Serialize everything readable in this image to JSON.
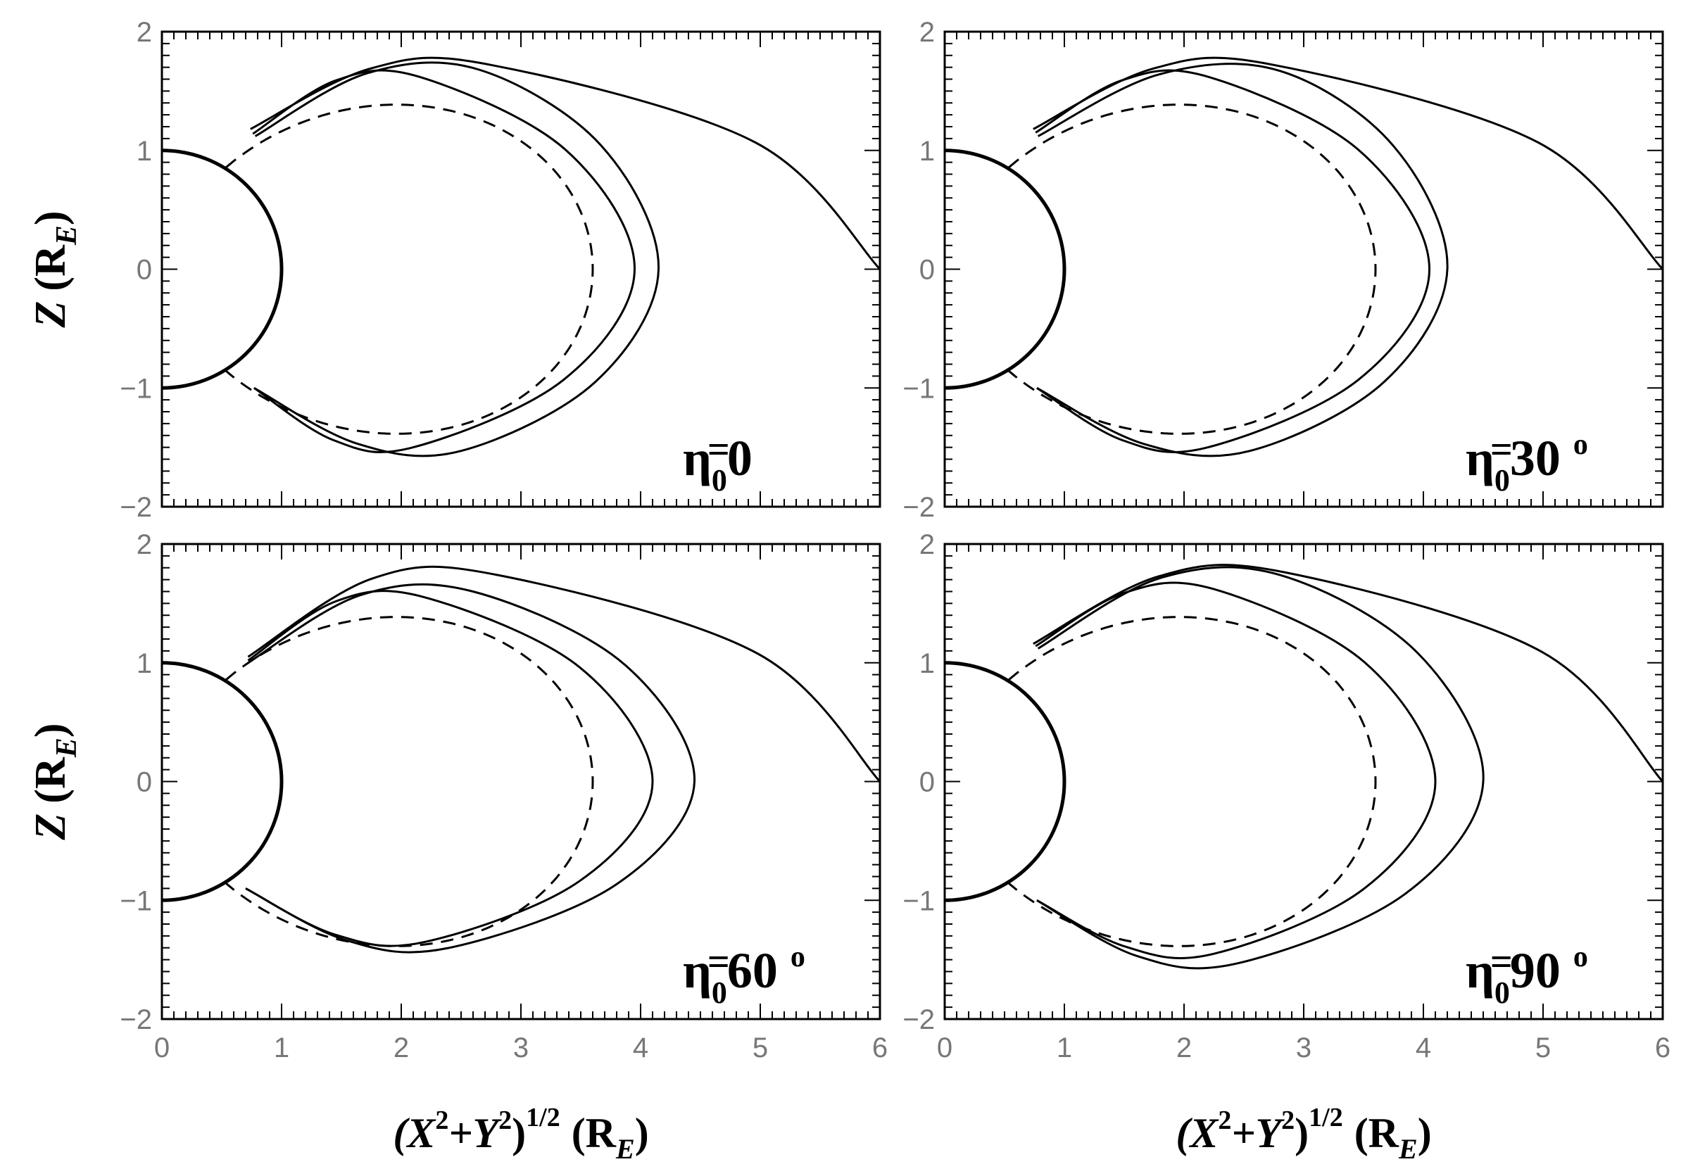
{
  "chart_data": [
    {
      "type": "line",
      "panel_label": {
        "main": "η",
        "sub": "0",
        "eq": "=",
        "value": "0",
        "deg": ""
      },
      "xlabel": {
        "base1": "(X",
        "sup1": "2",
        "plus": "+Y",
        "sup2": "2",
        "close": ")",
        "sup3": "1/2",
        "unit": "(R",
        "unit_sub": "E",
        "unit_close": ")"
      },
      "ylabel": {
        "var": "Z",
        "unit": "(R",
        "unit_sub": "E",
        "unit_close": ")"
      },
      "xlim": [
        0,
        6
      ],
      "ylim": [
        -2,
        2
      ],
      "xticks": [
        "0",
        "1",
        "2",
        "3",
        "4",
        "5",
        "6"
      ],
      "yticks": [
        "−2",
        "−1",
        "0",
        "1",
        "2"
      ],
      "earth_radius": 1,
      "dipole": {
        "style": "dashed",
        "L": 3.6,
        "lat_min_deg": 58
      },
      "field_lines": [
        {
          "style": "solid",
          "start": [
            0.78,
            1.12
          ],
          "top": [
            2.65,
            1.68
          ],
          "equator": 4.15,
          "bottom": [
            2.5,
            -1.53
          ],
          "end": [
            0.77,
            -1.0
          ]
        },
        {
          "style": "solid",
          "start": [
            0.76,
            1.14
          ],
          "top": [
            2.15,
            1.62
          ],
          "equator": 3.95,
          "bottom": [
            2.1,
            -1.5
          ],
          "end": [
            0.77,
            -1.0
          ]
        },
        {
          "style": "solid",
          "start": [
            0.74,
            1.18
          ],
          "top": [
            2.75,
            1.72
          ],
          "equator": 6.0,
          "bottom": null,
          "end": null
        }
      ]
    },
    {
      "type": "line",
      "panel_label": {
        "main": "η",
        "sub": "0",
        "eq": "=",
        "value": "30",
        "deg": "o"
      },
      "xlabel": {
        "base1": "(X",
        "sup1": "2",
        "plus": "+Y",
        "sup2": "2",
        "close": ")",
        "sup3": "1/2",
        "unit": "(R",
        "unit_sub": "E",
        "unit_close": ")"
      },
      "ylabel": {
        "var": "Z",
        "unit": "(R",
        "unit_sub": "E",
        "unit_close": ")"
      },
      "xlim": [
        0,
        6
      ],
      "ylim": [
        -2,
        2
      ],
      "xticks": [
        "0",
        "1",
        "2",
        "3",
        "4",
        "5",
        "6"
      ],
      "yticks": [
        "−2",
        "−1",
        "0",
        "1",
        "2"
      ],
      "earth_radius": 1,
      "dipole": {
        "style": "dashed",
        "L": 3.6,
        "lat_min_deg": 58
      },
      "field_lines": [
        {
          "style": "solid",
          "start": [
            0.78,
            1.12
          ],
          "top": [
            2.8,
            1.67
          ],
          "equator": 4.2,
          "bottom": [
            2.55,
            -1.53
          ],
          "end": [
            0.77,
            -1.0
          ]
        },
        {
          "style": "solid",
          "start": [
            0.76,
            1.15
          ],
          "top": [
            2.2,
            1.62
          ],
          "equator": 4.05,
          "bottom": [
            2.2,
            -1.5
          ],
          "end": [
            0.77,
            -1.0
          ]
        },
        {
          "style": "solid",
          "start": [
            0.74,
            1.18
          ],
          "top": [
            2.75,
            1.72
          ],
          "equator": 6.0,
          "bottom": null,
          "end": null
        }
      ]
    },
    {
      "type": "line",
      "panel_label": {
        "main": "η",
        "sub": "0",
        "eq": "=",
        "value": "60",
        "deg": "o"
      },
      "xlabel": {
        "base1": "(X",
        "sup1": "2",
        "plus": "+Y",
        "sup2": "2",
        "close": ")",
        "sup3": "1/2",
        "unit": "(R",
        "unit_sub": "E",
        "unit_close": ")"
      },
      "ylabel": {
        "var": "Z",
        "unit": "(R",
        "unit_sub": "E",
        "unit_close": ")"
      },
      "xlim": [
        0,
        6
      ],
      "ylim": [
        -2,
        2
      ],
      "xticks": [
        "0",
        "1",
        "2",
        "3",
        "4",
        "5",
        "6"
      ],
      "yticks": [
        "−2",
        "−1",
        "0",
        "1",
        "2"
      ],
      "earth_radius": 1,
      "dipole": {
        "style": "dashed",
        "L": 3.6,
        "lat_min_deg": 58
      },
      "field_lines": [
        {
          "style": "solid",
          "start": [
            0.72,
            1.0
          ],
          "top": [
            2.6,
            1.6
          ],
          "equator": 4.45,
          "bottom": [
            2.4,
            -1.4
          ],
          "end": [
            0.7,
            -0.9
          ]
        },
        {
          "style": "solid",
          "start": [
            0.72,
            1.02
          ],
          "top": [
            2.2,
            1.55
          ],
          "equator": 4.1,
          "bottom": [
            2.2,
            -1.35
          ],
          "end": [
            0.7,
            -0.9
          ]
        },
        {
          "style": "solid",
          "start": [
            0.72,
            1.05
          ],
          "top": [
            2.8,
            1.74
          ],
          "equator": 6.0,
          "bottom": null,
          "end": null
        }
      ]
    },
    {
      "type": "line",
      "panel_label": {
        "main": "η",
        "sub": "0",
        "eq": "=",
        "value": "90",
        "deg": "o"
      },
      "xlabel": {
        "base1": "(X",
        "sup1": "2",
        "plus": "+Y",
        "sup2": "2",
        "close": ")",
        "sup3": "1/2",
        "unit": "(R",
        "unit_sub": "E",
        "unit_close": ")"
      },
      "ylabel": {
        "var": "Z",
        "unit": "(R",
        "unit_sub": "E",
        "unit_close": ")"
      },
      "xlim": [
        0,
        6
      ],
      "ylim": [
        -2,
        2
      ],
      "xticks": [
        "0",
        "1",
        "2",
        "3",
        "4",
        "5",
        "6"
      ],
      "yticks": [
        "−2",
        "−1",
        "0",
        "1",
        "2"
      ],
      "earth_radius": 1,
      "dipole": {
        "style": "dashed",
        "L": 3.6,
        "lat_min_deg": 58
      },
      "field_lines": [
        {
          "style": "solid",
          "start": [
            0.78,
            1.12
          ],
          "top": [
            2.8,
            1.74
          ],
          "equator": 4.5,
          "bottom": [
            2.45,
            -1.53
          ],
          "end": [
            0.77,
            -1.0
          ]
        },
        {
          "style": "solid",
          "start": [
            0.76,
            1.14
          ],
          "top": [
            2.25,
            1.62
          ],
          "equator": 4.1,
          "bottom": [
            2.25,
            -1.45
          ],
          "end": [
            0.77,
            -1.0
          ]
        },
        {
          "style": "solid",
          "start": [
            0.74,
            1.16
          ],
          "top": [
            2.85,
            1.76
          ],
          "equator": 6.0,
          "bottom": null,
          "end": null
        }
      ]
    }
  ]
}
